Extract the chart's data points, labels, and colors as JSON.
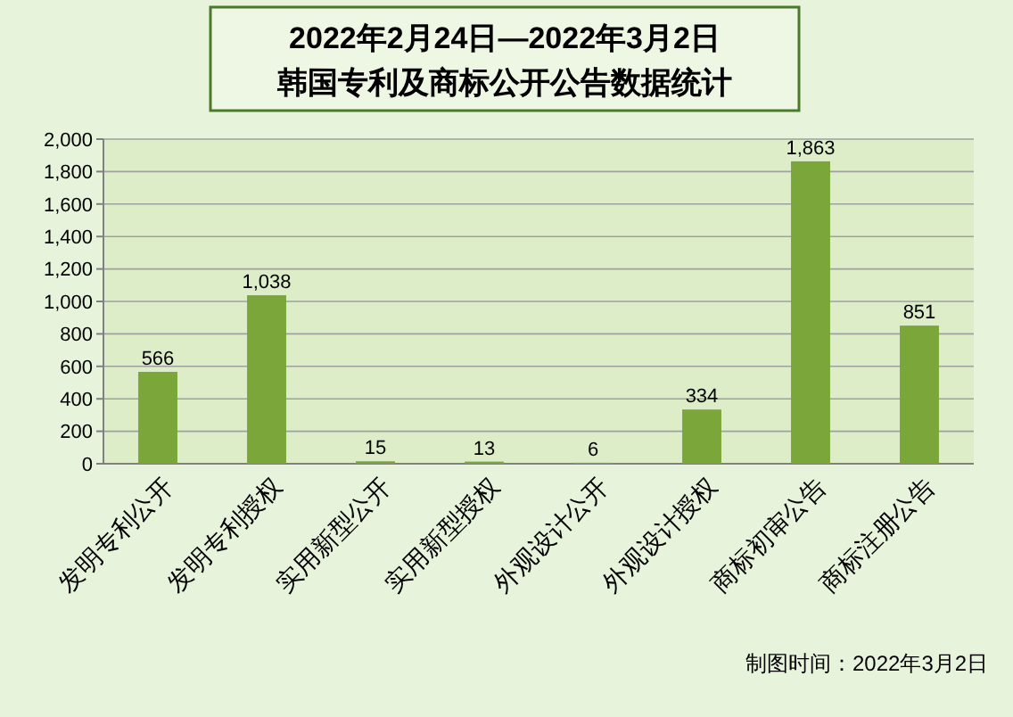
{
  "chart_data": {
    "type": "bar",
    "title": "2022年2月24日—2022年3月2日",
    "subtitle": "韩国专利及商标公开公告数据统计",
    "categories": [
      "发明专利公开",
      "发明专利授权",
      "实用新型公开",
      "实用新型授权",
      "外观设计公开",
      "外观设计授权",
      "商标初审公告",
      "商标注册公告"
    ],
    "values": [
      566,
      1038,
      15,
      13,
      6,
      334,
      1863,
      851
    ],
    "color": "#7aa63a",
    "ylim": [
      0,
      2000
    ],
    "yticks": [
      {
        "value": 0,
        "label": "0"
      },
      {
        "value": 200,
        "label": "200"
      },
      {
        "value": 400,
        "label": "400"
      },
      {
        "value": 600,
        "label": "600"
      },
      {
        "value": 800,
        "label": "800"
      },
      {
        "value": 1000,
        "label": "1,000"
      },
      {
        "value": 1200,
        "label": "1,200"
      },
      {
        "value": 1400,
        "label": "1,400"
      },
      {
        "value": 1600,
        "label": "1,600"
      },
      {
        "value": 1800,
        "label": "1,800"
      },
      {
        "value": 2000,
        "label": "2,000"
      }
    ],
    "grid": "y",
    "value_labels": [
      "566",
      "1,038",
      "15",
      "13",
      "6",
      "334",
      "1,863",
      "851"
    ],
    "annotations": [
      "制图时间：2022年3月2日"
    ]
  }
}
